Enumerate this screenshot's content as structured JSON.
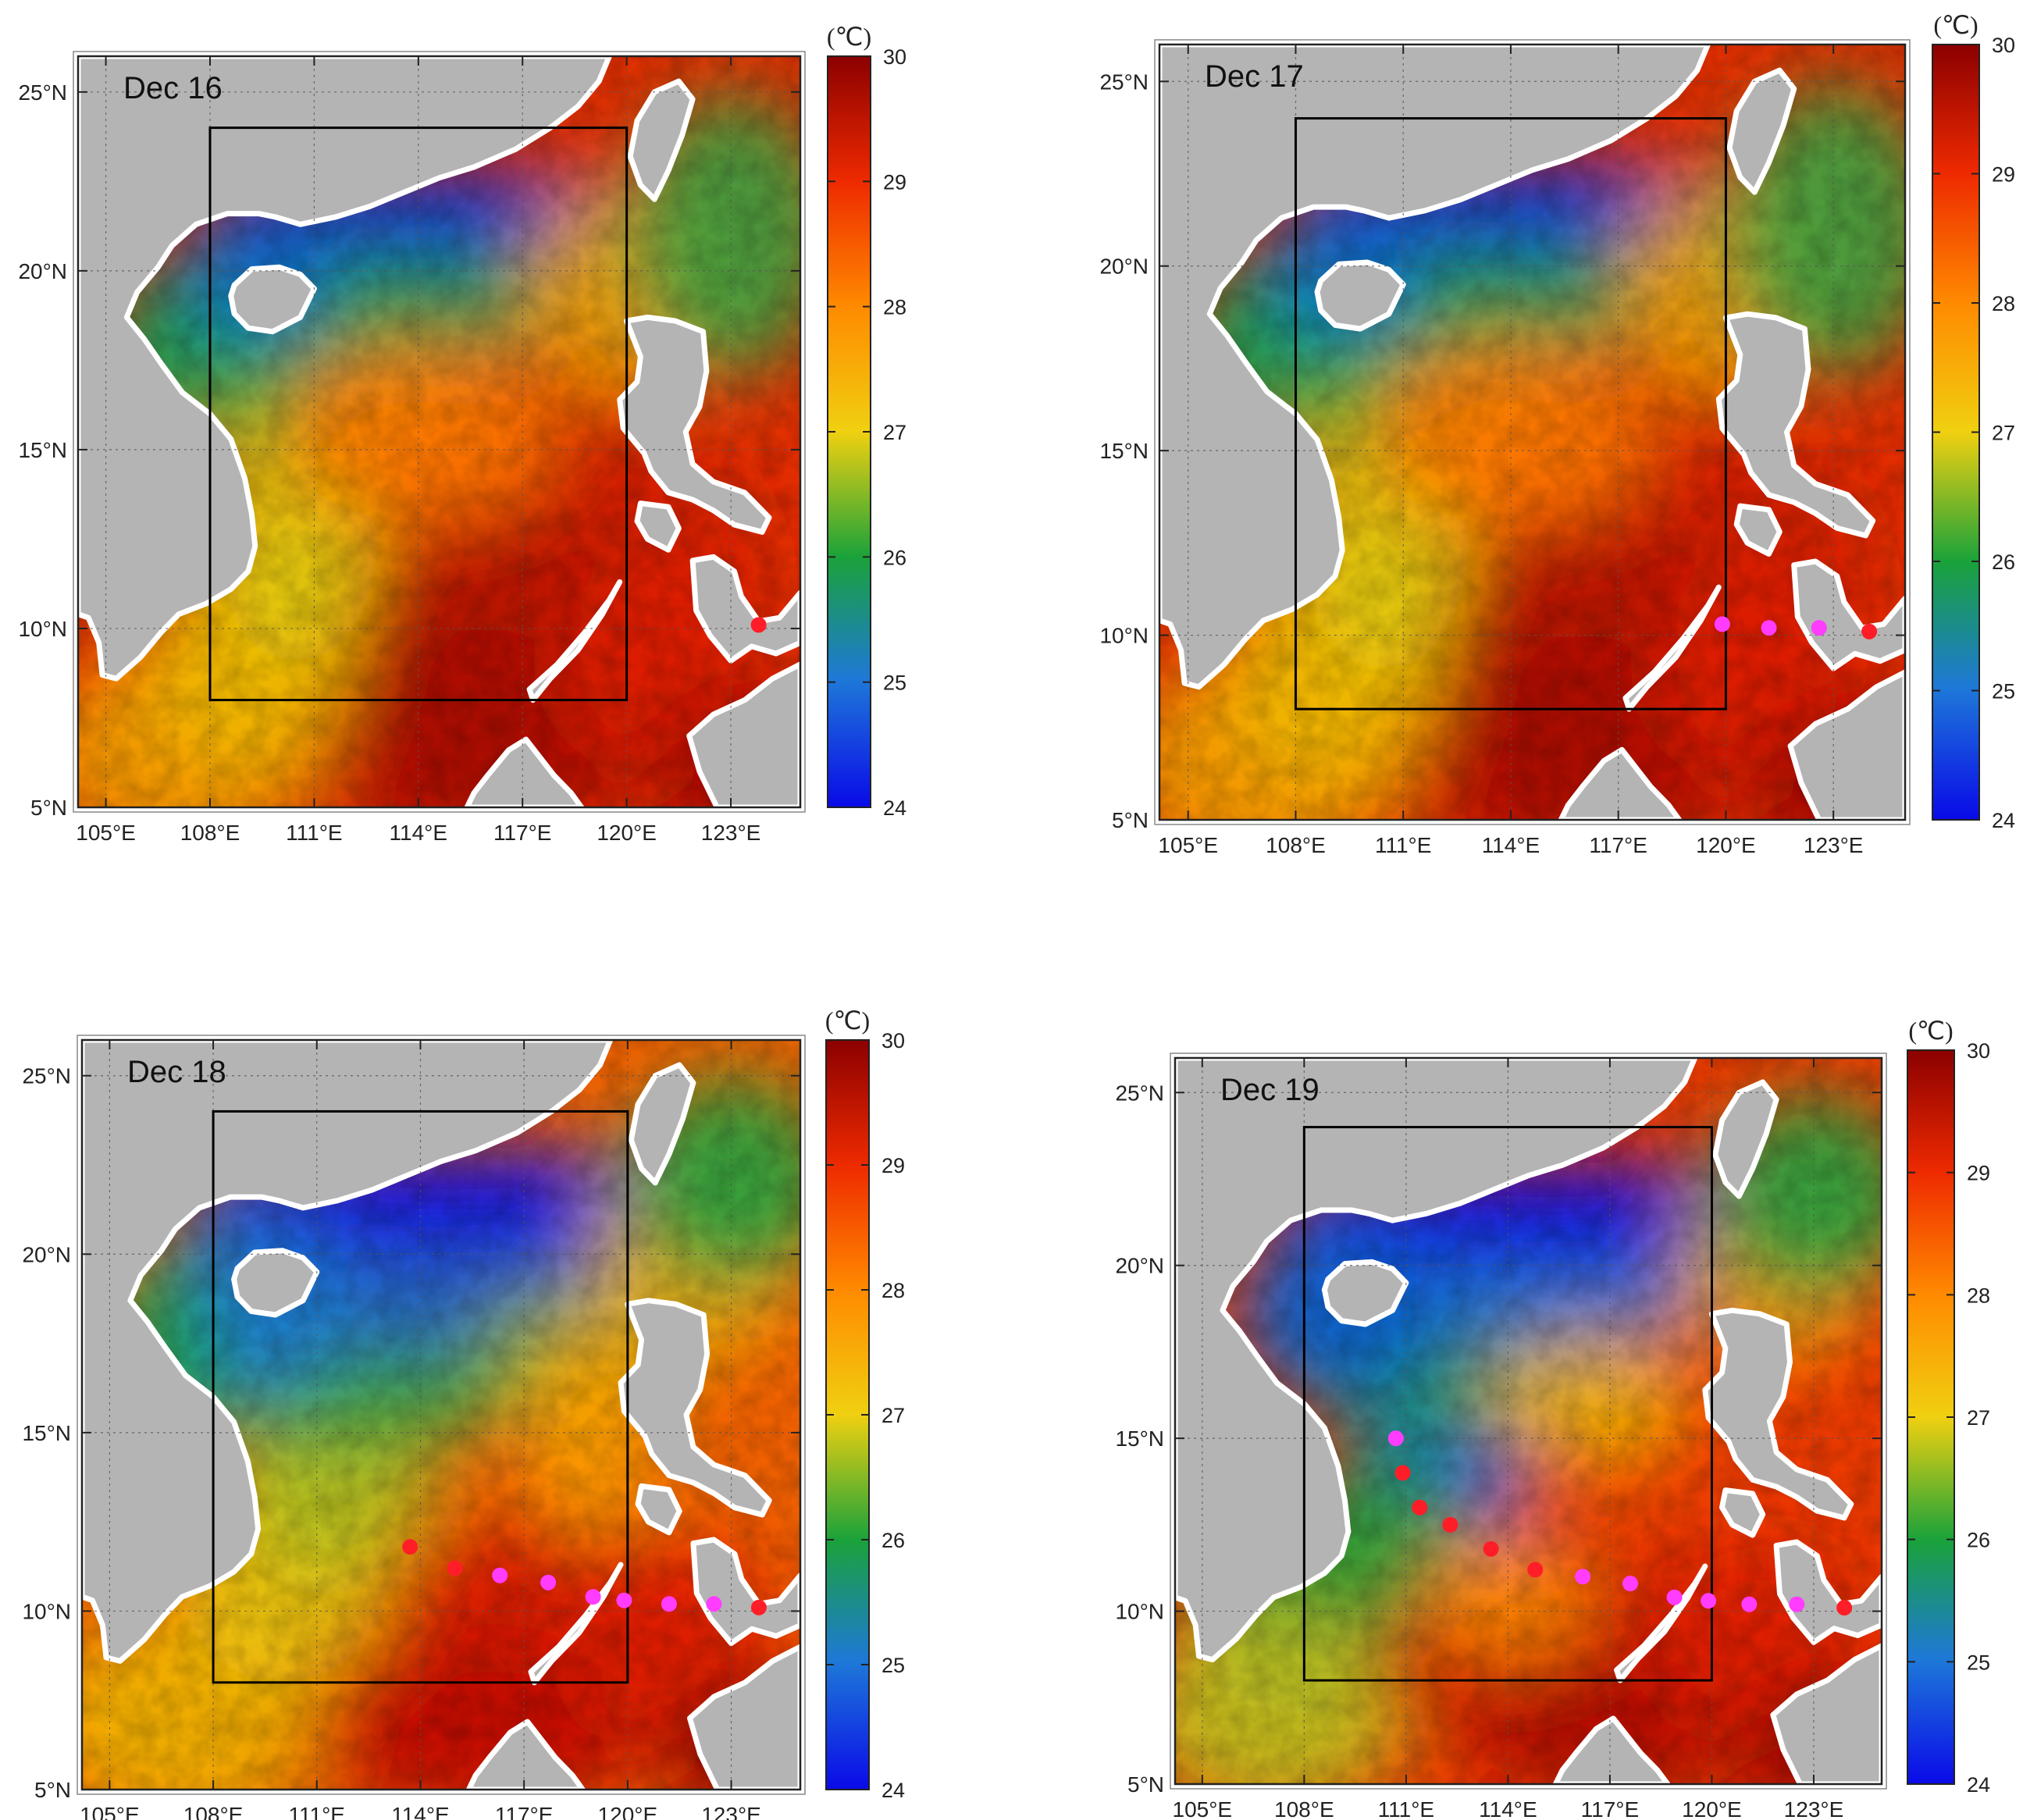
{
  "figure": {
    "panels": [
      {
        "title": "Dec 16",
        "state": "warm",
        "markers": [
          {
            "lon": 123.8,
            "lat": 10.1,
            "type": "red"
          }
        ]
      },
      {
        "title": "Dec 17",
        "state": "warm",
        "markers": [
          {
            "lon": 119.9,
            "lat": 10.3,
            "type": "magenta"
          },
          {
            "lon": 121.2,
            "lat": 10.2,
            "type": "magenta"
          },
          {
            "lon": 122.6,
            "lat": 10.2,
            "type": "magenta"
          },
          {
            "lon": 124.0,
            "lat": 10.1,
            "type": "red"
          }
        ]
      },
      {
        "title": "Dec 18",
        "state": "mid",
        "markers": [
          {
            "lon": 113.7,
            "lat": 11.8,
            "type": "red"
          },
          {
            "lon": 115.0,
            "lat": 11.2,
            "type": "red"
          },
          {
            "lon": 116.3,
            "lat": 11.0,
            "type": "magenta"
          },
          {
            "lon": 117.7,
            "lat": 10.8,
            "type": "magenta"
          },
          {
            "lon": 119.0,
            "lat": 10.4,
            "type": "magenta"
          },
          {
            "lon": 119.9,
            "lat": 10.3,
            "type": "magenta"
          },
          {
            "lon": 121.2,
            "lat": 10.2,
            "type": "magenta"
          },
          {
            "lon": 122.5,
            "lat": 10.2,
            "type": "magenta"
          },
          {
            "lon": 123.8,
            "lat": 10.1,
            "type": "red"
          }
        ]
      },
      {
        "title": "Dec 19",
        "state": "cool",
        "markers": [
          {
            "lon": 110.7,
            "lat": 15.0,
            "type": "magenta"
          },
          {
            "lon": 110.9,
            "lat": 14.0,
            "type": "red"
          },
          {
            "lon": 111.4,
            "lat": 13.0,
            "type": "red"
          },
          {
            "lon": 112.3,
            "lat": 12.5,
            "type": "red"
          },
          {
            "lon": 113.5,
            "lat": 11.8,
            "type": "red"
          },
          {
            "lon": 114.8,
            "lat": 11.2,
            "type": "red"
          },
          {
            "lon": 116.2,
            "lat": 11.0,
            "type": "magenta"
          },
          {
            "lon": 117.6,
            "lat": 10.8,
            "type": "magenta"
          },
          {
            "lon": 118.9,
            "lat": 10.4,
            "type": "magenta"
          },
          {
            "lon": 119.9,
            "lat": 10.3,
            "type": "magenta"
          },
          {
            "lon": 121.1,
            "lat": 10.2,
            "type": "magenta"
          },
          {
            "lon": 122.5,
            "lat": 10.2,
            "type": "magenta"
          },
          {
            "lon": 123.9,
            "lat": 10.1,
            "type": "red"
          }
        ]
      }
    ],
    "lon_range": [
      104.2,
      125.0
    ],
    "lat_range": [
      5,
      26
    ],
    "lon_ticks": [
      105,
      108,
      111,
      114,
      117,
      120,
      123
    ],
    "lon_tick_labels": [
      "105°E",
      "108°E",
      "111°E",
      "114°E",
      "117°E",
      "120°E",
      "123°E"
    ],
    "lat_ticks": [
      5,
      10,
      15,
      20,
      25
    ],
    "lat_tick_labels": [
      "5°N",
      "10°N",
      "15°N",
      "20°N",
      "25°N"
    ],
    "study_box": {
      "lon_min": 108,
      "lon_max": 120,
      "lat_min": 8,
      "lat_max": 24
    },
    "colorbar": {
      "unit": "(℃)",
      "min": 24,
      "max": 30,
      "ticks": [
        24,
        25,
        26,
        27,
        28,
        29,
        30
      ],
      "tick_labels": [
        "24",
        "25",
        "26",
        "27",
        "28",
        "29",
        "30"
      ],
      "colors": [
        "#0a0ae8",
        "#1e78d8",
        "#1aa23a",
        "#f0d010",
        "#ff8a00",
        "#ee2a00",
        "#8c0000"
      ]
    },
    "land_color": "#b4b4b4",
    "marker_colors": {
      "red": "#ff1e28",
      "magenta": "#ff3cff"
    }
  }
}
